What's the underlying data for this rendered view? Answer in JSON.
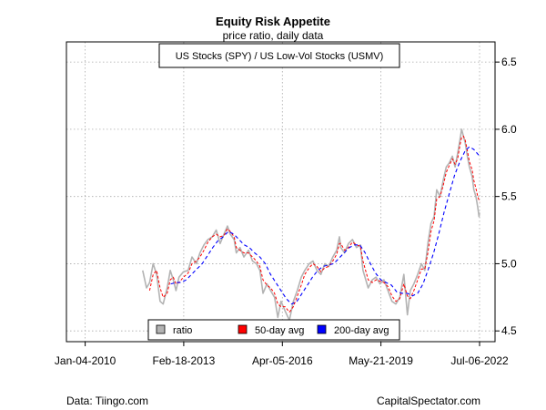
{
  "chart_data": {
    "type": "line",
    "title": "Equity Risk Appetite",
    "subtitle": "price ratio, daily data",
    "series_label": "US Stocks (SPY) / US Low-Vol Stocks (USMV)",
    "x_ticks": [
      "Jan-04-2010",
      "Feb-18-2013",
      "Apr-05-2016",
      "May-21-2019",
      "Jul-06-2022"
    ],
    "y_ticks": [
      "4.5",
      "5.0",
      "5.5",
      "6.0",
      "6.5"
    ],
    "x_range": [
      "2009-06-01",
      "2023-01-01"
    ],
    "ylim": [
      4.42,
      6.65
    ],
    "grid": true,
    "legend_position": "bottom-center",
    "series": [
      {
        "name": "ratio",
        "color": "#b3b3b3",
        "points": [
          [
            "2011-11-01",
            4.95
          ],
          [
            "2011-12-15",
            4.82
          ],
          [
            "2012-01-20",
            4.86
          ],
          [
            "2012-03-01",
            5.0
          ],
          [
            "2012-04-10",
            4.92
          ],
          [
            "2012-05-20",
            4.72
          ],
          [
            "2012-06-25",
            4.7
          ],
          [
            "2012-08-10",
            4.82
          ],
          [
            "2012-09-15",
            4.95
          ],
          [
            "2012-10-20",
            4.88
          ],
          [
            "2012-11-20",
            4.8
          ],
          [
            "2012-12-25",
            4.9
          ],
          [
            "2013-02-15",
            4.94
          ],
          [
            "2013-04-10",
            4.95
          ],
          [
            "2013-05-25",
            5.05
          ],
          [
            "2013-07-15",
            5.0
          ],
          [
            "2013-08-25",
            5.08
          ],
          [
            "2013-10-10",
            5.14
          ],
          [
            "2013-11-25",
            5.18
          ],
          [
            "2014-01-15",
            5.2
          ],
          [
            "2014-03-01",
            5.25
          ],
          [
            "2014-04-15",
            5.15
          ],
          [
            "2014-05-30",
            5.22
          ],
          [
            "2014-07-10",
            5.28
          ],
          [
            "2014-08-10",
            5.22
          ],
          [
            "2014-09-25",
            5.18
          ],
          [
            "2014-10-20",
            5.08
          ],
          [
            "2014-12-01",
            5.12
          ],
          [
            "2015-01-15",
            5.05
          ],
          [
            "2015-03-10",
            5.1
          ],
          [
            "2015-04-25",
            5.02
          ],
          [
            "2015-06-10",
            5.0
          ],
          [
            "2015-07-20",
            4.95
          ],
          [
            "2015-08-25",
            4.78
          ],
          [
            "2015-10-10",
            4.85
          ],
          [
            "2015-11-20",
            4.8
          ],
          [
            "2016-01-05",
            4.75
          ],
          [
            "2016-02-12",
            4.6
          ],
          [
            "2016-03-20",
            4.72
          ],
          [
            "2016-05-05",
            4.65
          ],
          [
            "2016-06-25",
            4.58
          ],
          [
            "2016-08-10",
            4.72
          ],
          [
            "2016-09-25",
            4.8
          ],
          [
            "2016-11-10",
            4.9
          ],
          [
            "2016-12-20",
            4.95
          ],
          [
            "2017-02-10",
            5.0
          ],
          [
            "2017-03-25",
            5.02
          ],
          [
            "2017-05-10",
            4.95
          ],
          [
            "2017-06-25",
            4.92
          ],
          [
            "2017-08-10",
            5.0
          ],
          [
            "2017-09-25",
            4.98
          ],
          [
            "2017-11-10",
            5.05
          ],
          [
            "2017-12-25",
            5.1
          ],
          [
            "2018-01-25",
            5.2
          ],
          [
            "2018-02-10",
            5.12
          ],
          [
            "2018-03-25",
            5.08
          ],
          [
            "2018-05-10",
            5.15
          ],
          [
            "2018-06-25",
            5.18
          ],
          [
            "2018-08-10",
            5.12
          ],
          [
            "2018-09-25",
            5.14
          ],
          [
            "2018-10-25",
            4.95
          ],
          [
            "2018-12-24",
            4.82
          ],
          [
            "2019-02-10",
            4.88
          ],
          [
            "2019-03-25",
            4.9
          ],
          [
            "2019-05-10",
            4.85
          ],
          [
            "2019-06-25",
            4.88
          ],
          [
            "2019-08-10",
            4.8
          ],
          [
            "2019-09-25",
            4.72
          ],
          [
            "2019-11-10",
            4.7
          ],
          [
            "2019-12-25",
            4.75
          ],
          [
            "2020-02-10",
            4.92
          ],
          [
            "2020-03-23",
            4.62
          ],
          [
            "2020-04-25",
            4.8
          ],
          [
            "2020-06-05",
            4.85
          ],
          [
            "2020-07-20",
            4.92
          ],
          [
            "2020-09-01",
            5.0
          ],
          [
            "2020-10-10",
            4.95
          ],
          [
            "2020-11-15",
            5.15
          ],
          [
            "2020-12-20",
            5.3
          ],
          [
            "2021-01-25",
            5.35
          ],
          [
            "2021-02-25",
            5.55
          ],
          [
            "2021-04-05",
            5.5
          ],
          [
            "2021-05-10",
            5.62
          ],
          [
            "2021-06-15",
            5.72
          ],
          [
            "2021-07-20",
            5.75
          ],
          [
            "2021-08-25",
            5.8
          ],
          [
            "2021-09-25",
            5.72
          ],
          [
            "2021-10-25",
            5.82
          ],
          [
            "2021-11-20",
            5.92
          ],
          [
            "2021-12-10",
            6.0
          ],
          [
            "2021-12-30",
            5.95
          ],
          [
            "2022-01-20",
            5.9
          ],
          [
            "2022-02-15",
            5.8
          ],
          [
            "2022-03-10",
            5.72
          ],
          [
            "2022-04-10",
            5.65
          ],
          [
            "2022-05-01",
            5.55
          ],
          [
            "2022-05-25",
            5.5
          ],
          [
            "2022-06-15",
            5.42
          ],
          [
            "2022-06-30",
            5.35
          ],
          [
            "2022-07-06",
            5.38
          ]
        ]
      },
      {
        "name": "50-day avg",
        "color": "#ff0000",
        "points": [
          [
            "2012-01-20",
            4.8
          ],
          [
            "2012-03-01",
            4.92
          ],
          [
            "2012-04-10",
            4.95
          ],
          [
            "2012-05-20",
            4.82
          ],
          [
            "2012-06-25",
            4.75
          ],
          [
            "2012-08-10",
            4.78
          ],
          [
            "2012-09-15",
            4.88
          ],
          [
            "2012-10-20",
            4.9
          ],
          [
            "2012-11-20",
            4.85
          ],
          [
            "2012-12-25",
            4.86
          ],
          [
            "2013-02-15",
            4.9
          ],
          [
            "2013-04-10",
            4.93
          ],
          [
            "2013-05-25",
            5.0
          ],
          [
            "2013-07-15",
            5.02
          ],
          [
            "2013-08-25",
            5.05
          ],
          [
            "2013-10-10",
            5.1
          ],
          [
            "2013-11-25",
            5.16
          ],
          [
            "2014-01-15",
            5.2
          ],
          [
            "2014-03-01",
            5.22
          ],
          [
            "2014-04-15",
            5.2
          ],
          [
            "2014-05-30",
            5.21
          ],
          [
            "2014-07-10",
            5.26
          ],
          [
            "2014-08-10",
            5.24
          ],
          [
            "2014-09-25",
            5.2
          ],
          [
            "2014-10-20",
            5.12
          ],
          [
            "2014-12-01",
            5.1
          ],
          [
            "2015-01-15",
            5.08
          ],
          [
            "2015-03-10",
            5.08
          ],
          [
            "2015-04-25",
            5.05
          ],
          [
            "2015-06-10",
            5.02
          ],
          [
            "2015-07-20",
            4.98
          ],
          [
            "2015-08-25",
            4.88
          ],
          [
            "2015-10-10",
            4.84
          ],
          [
            "2015-11-20",
            4.82
          ],
          [
            "2016-01-05",
            4.78
          ],
          [
            "2016-02-12",
            4.7
          ],
          [
            "2016-03-20",
            4.68
          ],
          [
            "2016-05-05",
            4.68
          ],
          [
            "2016-06-25",
            4.64
          ],
          [
            "2016-08-10",
            4.68
          ],
          [
            "2016-09-25",
            4.76
          ],
          [
            "2016-11-10",
            4.84
          ],
          [
            "2016-12-20",
            4.92
          ],
          [
            "2017-02-10",
            4.97
          ],
          [
            "2017-03-25",
            5.0
          ],
          [
            "2017-05-10",
            4.98
          ],
          [
            "2017-06-25",
            4.94
          ],
          [
            "2017-08-10",
            4.97
          ],
          [
            "2017-09-25",
            4.98
          ],
          [
            "2017-11-10",
            5.02
          ],
          [
            "2017-12-25",
            5.07
          ],
          [
            "2018-01-25",
            5.15
          ],
          [
            "2018-02-10",
            5.15
          ],
          [
            "2018-03-25",
            5.1
          ],
          [
            "2018-05-10",
            5.12
          ],
          [
            "2018-06-25",
            5.16
          ],
          [
            "2018-08-10",
            5.14
          ],
          [
            "2018-09-25",
            5.13
          ],
          [
            "2018-10-25",
            5.02
          ],
          [
            "2018-12-24",
            4.88
          ],
          [
            "2019-02-10",
            4.86
          ],
          [
            "2019-03-25",
            4.88
          ],
          [
            "2019-05-10",
            4.87
          ],
          [
            "2019-06-25",
            4.86
          ],
          [
            "2019-08-10",
            4.83
          ],
          [
            "2019-09-25",
            4.76
          ],
          [
            "2019-11-10",
            4.72
          ],
          [
            "2019-12-25",
            4.74
          ],
          [
            "2020-02-10",
            4.85
          ],
          [
            "2020-03-23",
            4.76
          ],
          [
            "2020-04-25",
            4.74
          ],
          [
            "2020-06-05",
            4.8
          ],
          [
            "2020-07-20",
            4.88
          ],
          [
            "2020-09-01",
            4.96
          ],
          [
            "2020-10-10",
            4.96
          ],
          [
            "2020-11-15",
            5.08
          ],
          [
            "2020-12-20",
            5.24
          ],
          [
            "2021-01-25",
            5.32
          ],
          [
            "2021-02-25",
            5.48
          ],
          [
            "2021-04-05",
            5.5
          ],
          [
            "2021-05-10",
            5.58
          ],
          [
            "2021-06-15",
            5.68
          ],
          [
            "2021-07-20",
            5.73
          ],
          [
            "2021-08-25",
            5.78
          ],
          [
            "2021-09-25",
            5.74
          ],
          [
            "2021-10-25",
            5.78
          ],
          [
            "2021-11-20",
            5.88
          ],
          [
            "2021-12-10",
            5.94
          ],
          [
            "2021-12-30",
            5.95
          ],
          [
            "2022-01-20",
            5.92
          ],
          [
            "2022-02-15",
            5.84
          ],
          [
            "2022-03-10",
            5.76
          ],
          [
            "2022-04-10",
            5.7
          ],
          [
            "2022-05-01",
            5.62
          ],
          [
            "2022-05-25",
            5.56
          ],
          [
            "2022-06-15",
            5.5
          ],
          [
            "2022-07-06",
            5.46
          ]
        ]
      },
      {
        "name": "200-day avg",
        "color": "#0000ff",
        "points": [
          [
            "2012-09-20",
            4.85
          ],
          [
            "2012-11-20",
            4.86
          ],
          [
            "2013-01-20",
            4.86
          ],
          [
            "2013-03-20",
            4.88
          ],
          [
            "2013-05-20",
            4.92
          ],
          [
            "2013-07-20",
            4.96
          ],
          [
            "2013-09-20",
            5.0
          ],
          [
            "2013-11-20",
            5.06
          ],
          [
            "2014-01-20",
            5.12
          ],
          [
            "2014-03-20",
            5.17
          ],
          [
            "2014-05-20",
            5.2
          ],
          [
            "2014-07-20",
            5.24
          ],
          [
            "2014-09-20",
            5.22
          ],
          [
            "2014-11-20",
            5.18
          ],
          [
            "2015-01-20",
            5.14
          ],
          [
            "2015-03-20",
            5.12
          ],
          [
            "2015-05-20",
            5.08
          ],
          [
            "2015-07-20",
            5.05
          ],
          [
            "2015-09-20",
            5.0
          ],
          [
            "2015-11-20",
            4.92
          ],
          [
            "2016-01-20",
            4.86
          ],
          [
            "2016-03-20",
            4.8
          ],
          [
            "2016-05-20",
            4.74
          ],
          [
            "2016-07-20",
            4.7
          ],
          [
            "2016-09-20",
            4.72
          ],
          [
            "2016-11-20",
            4.78
          ],
          [
            "2017-01-20",
            4.84
          ],
          [
            "2017-03-20",
            4.9
          ],
          [
            "2017-05-20",
            4.95
          ],
          [
            "2017-07-20",
            4.98
          ],
          [
            "2017-09-20",
            4.99
          ],
          [
            "2017-11-20",
            5.0
          ],
          [
            "2018-01-20",
            5.04
          ],
          [
            "2018-03-20",
            5.08
          ],
          [
            "2018-05-20",
            5.12
          ],
          [
            "2018-07-20",
            5.14
          ],
          [
            "2018-09-20",
            5.14
          ],
          [
            "2018-11-20",
            5.08
          ],
          [
            "2019-01-20",
            5.0
          ],
          [
            "2019-03-20",
            4.93
          ],
          [
            "2019-05-20",
            4.88
          ],
          [
            "2019-07-20",
            4.86
          ],
          [
            "2019-09-20",
            4.84
          ],
          [
            "2019-11-20",
            4.79
          ],
          [
            "2020-01-20",
            4.78
          ],
          [
            "2020-03-20",
            4.78
          ],
          [
            "2020-05-20",
            4.76
          ],
          [
            "2020-07-20",
            4.78
          ],
          [
            "2020-09-20",
            4.85
          ],
          [
            "2020-11-20",
            4.96
          ],
          [
            "2021-01-20",
            5.08
          ],
          [
            "2021-03-20",
            5.22
          ],
          [
            "2021-05-20",
            5.38
          ],
          [
            "2021-07-20",
            5.52
          ],
          [
            "2021-09-20",
            5.66
          ],
          [
            "2021-11-20",
            5.76
          ],
          [
            "2022-01-20",
            5.84
          ],
          [
            "2022-03-10",
            5.87
          ],
          [
            "2022-05-01",
            5.85
          ],
          [
            "2022-07-06",
            5.8
          ]
        ]
      }
    ]
  },
  "footer": {
    "left": "Data: Tiingo.com",
    "right": "CapitalSpectator.com"
  }
}
